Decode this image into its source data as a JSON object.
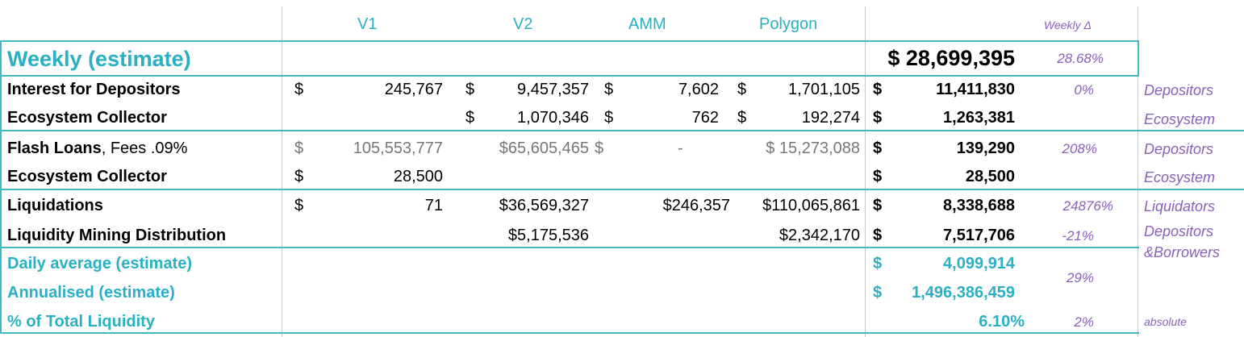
{
  "columns": {
    "v1": "V1",
    "v2": "V2",
    "amm": "AMM",
    "polygon": "Polygon",
    "weekly_delta": "Weekly Δ"
  },
  "weekly": {
    "label": "Weekly (estimate)",
    "total": "$ 28,699,395",
    "delta": "28.68%"
  },
  "rows": {
    "interest": {
      "label": "Interest for Depositors",
      "v1_sym": "$",
      "v1": "245,767",
      "v2_sym": "$",
      "v2": "9,457,357",
      "amm_sym": "$",
      "amm": "7,602",
      "poly_sym": "$",
      "poly": "1,701,105",
      "total_sym": "$",
      "total": "11,411,830",
      "delta": "0%",
      "recipient": "Depositors"
    },
    "eco1": {
      "label": "Ecosystem Collector",
      "v2_sym": "$",
      "v2": "1,070,346",
      "amm_sym": "$",
      "amm": "762",
      "poly_sym": "$",
      "poly": "192,274",
      "total_sym": "$",
      "total": "1,263,381",
      "recipient": "Ecosystem"
    },
    "flash": {
      "label": "Flash Loans",
      "label_suffix": ", Fees .09%",
      "v1_sym": "$",
      "v1": "105,553,777",
      "v2": "$65,605,465",
      "amm_sym": "$",
      "amm": "-",
      "poly": "$ 15,273,088",
      "total_sym": "$",
      "total": "139,290",
      "delta": "208%",
      "recipient": "Depositors"
    },
    "eco2": {
      "label": "Ecosystem Collector",
      "v1_sym": "$",
      "v1": "28,500",
      "total_sym": "$",
      "total": "28,500",
      "recipient": "Ecosystem"
    },
    "liq": {
      "label": "Liquidations",
      "v1_sym": "$",
      "v1": "71",
      "v2": "$36,569,327",
      "amm": "$246,357",
      "poly": "$110,065,861",
      "total_sym": "$",
      "total": "8,338,688",
      "delta": "24876%",
      "recipient": "Liquidators"
    },
    "mining": {
      "label": "Liquidity Mining Distribution",
      "v2": "$5,175,536",
      "poly": "$2,342,170",
      "total_sym": "$",
      "total": "7,517,706",
      "delta": "-21%",
      "recipient_1": "Depositors",
      "recipient_2": "&Borrowers"
    }
  },
  "summary": {
    "daily": {
      "label": "Daily average (estimate)",
      "sym": "$",
      "value": "4,099,914"
    },
    "annual": {
      "label": "Annualised (estimate)",
      "sym": "$",
      "value": "1,496,386,459"
    },
    "combined_delta": "29%",
    "pct": {
      "label": "% of Total Liquidity",
      "value": "6.10%",
      "delta": "2%",
      "note": "absolute"
    }
  },
  "colors": {
    "teal": "#2ab0c3",
    "purple": "#8a5fb8",
    "gray": "#777777"
  }
}
